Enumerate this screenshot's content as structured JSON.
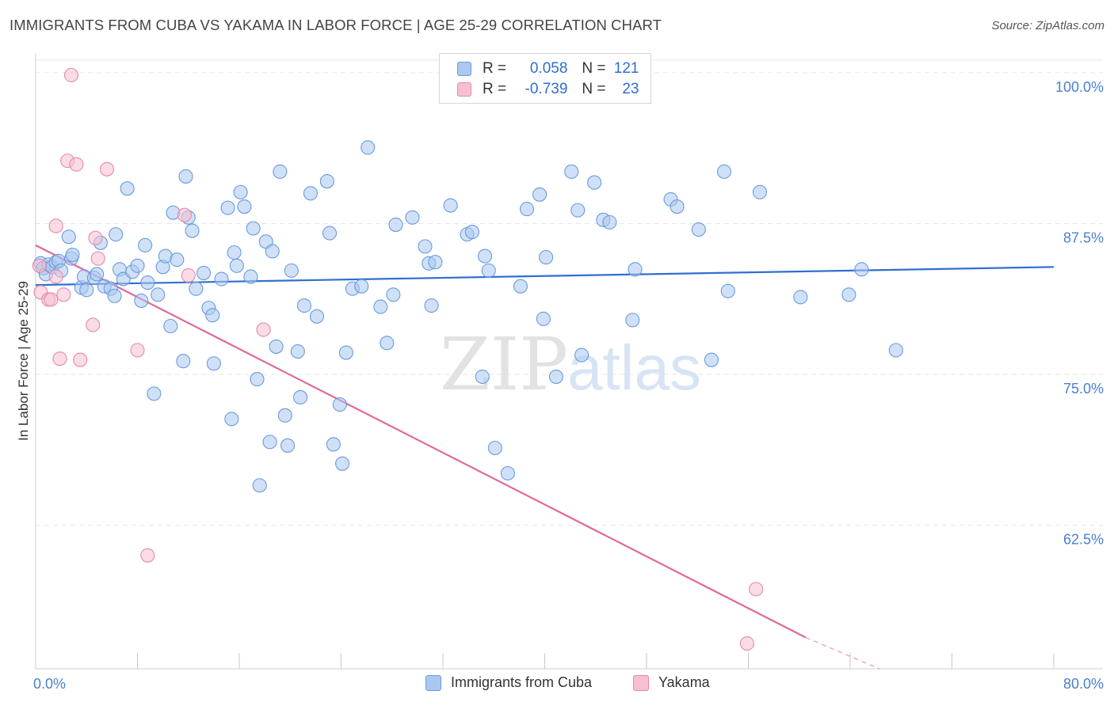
{
  "header": {
    "title": "IMMIGRANTS FROM CUBA VS YAKAMA IN LABOR FORCE | AGE 25-29 CORRELATION CHART",
    "source": "Source: ZipAtlas.com"
  },
  "watermark": {
    "text_zip": "ZIP",
    "text_atlas": "atlas"
  },
  "legend": {
    "r_label": "R =",
    "n_label": "N =",
    "rows": [
      {
        "r": "0.058",
        "n": "121",
        "color": "#aac8f0",
        "border": "#6b9be0"
      },
      {
        "r": "-0.739",
        "n": "23",
        "color": "#f7bfd0",
        "border": "#e88aa6"
      }
    ]
  },
  "colors": {
    "blue_fill": "#aac8f0",
    "blue_stroke": "#6a9adf",
    "blue_line": "#2f6fd0",
    "pink_fill": "#f7c0d1",
    "pink_stroke": "#e58aa8",
    "pink_line": "#e0679a",
    "grid": "#e6e6e6",
    "axis_text": "#4a7fd0"
  },
  "chart_data": {
    "type": "scatter",
    "title": "IMMIGRANTS FROM CUBA VS YAKAMA IN LABOR FORCE | AGE 25-29 CORRELATION CHART",
    "xlabel": "",
    "ylabel": "In Labor Force | Age 25-29",
    "xlim": [
      0,
      80
    ],
    "ylim": [
      50.6,
      101.3
    ],
    "x_tick_labels": [
      "0.0%",
      "80.0%"
    ],
    "y_ticks": [
      62.5,
      75.0,
      87.5,
      100.0
    ],
    "y_tick_labels": [
      "62.5%",
      "75.0%",
      "87.5%",
      "100.0%"
    ],
    "grid": true,
    "legend_position": "top-center",
    "series": [
      {
        "name": "Immigrants from Cuba",
        "r": 0.058,
        "n": 121,
        "trend": {
          "x": [
            0,
            80
          ],
          "y": [
            82.4,
            83.9
          ]
        },
        "points": [
          [
            0.4,
            84.2
          ],
          [
            0.6,
            83.8
          ],
          [
            0.8,
            83.3
          ],
          [
            1.0,
            84.1
          ],
          [
            1.3,
            83.9
          ],
          [
            1.6,
            84.3
          ],
          [
            1.8,
            84.4
          ],
          [
            2.0,
            83.6
          ],
          [
            2.6,
            86.4
          ],
          [
            2.8,
            84.6
          ],
          [
            2.9,
            84.9
          ],
          [
            3.6,
            82.2
          ],
          [
            3.8,
            83.1
          ],
          [
            4.0,
            82.0
          ],
          [
            4.6,
            83.0
          ],
          [
            4.8,
            83.3
          ],
          [
            5.1,
            85.9
          ],
          [
            5.4,
            82.3
          ],
          [
            5.9,
            82.1
          ],
          [
            6.2,
            81.5
          ],
          [
            6.3,
            86.6
          ],
          [
            6.6,
            83.7
          ],
          [
            6.9,
            82.9
          ],
          [
            7.2,
            90.4
          ],
          [
            7.6,
            83.5
          ],
          [
            8.0,
            84.0
          ],
          [
            8.3,
            81.1
          ],
          [
            8.6,
            85.7
          ],
          [
            8.8,
            82.6
          ],
          [
            9.3,
            73.4
          ],
          [
            9.6,
            81.6
          ],
          [
            10.0,
            83.9
          ],
          [
            10.2,
            84.8
          ],
          [
            10.6,
            79.0
          ],
          [
            10.8,
            88.4
          ],
          [
            11.1,
            84.5
          ],
          [
            11.6,
            76.1
          ],
          [
            11.8,
            91.4
          ],
          [
            12.0,
            88.0
          ],
          [
            12.3,
            86.9
          ],
          [
            12.6,
            82.1
          ],
          [
            13.2,
            83.4
          ],
          [
            13.6,
            80.5
          ],
          [
            13.9,
            79.9
          ],
          [
            14.0,
            75.9
          ],
          [
            14.6,
            82.9
          ],
          [
            15.1,
            88.8
          ],
          [
            15.4,
            71.3
          ],
          [
            15.6,
            85.1
          ],
          [
            15.8,
            84.0
          ],
          [
            16.1,
            90.1
          ],
          [
            16.4,
            88.9
          ],
          [
            16.9,
            83.1
          ],
          [
            17.1,
            87.1
          ],
          [
            17.4,
            74.6
          ],
          [
            17.6,
            65.8
          ],
          [
            18.1,
            86.0
          ],
          [
            18.4,
            69.4
          ],
          [
            18.6,
            85.2
          ],
          [
            18.9,
            77.3
          ],
          [
            19.2,
            91.8
          ],
          [
            19.6,
            71.6
          ],
          [
            19.8,
            69.1
          ],
          [
            20.1,
            83.6
          ],
          [
            20.6,
            76.9
          ],
          [
            20.8,
            73.1
          ],
          [
            21.1,
            80.7
          ],
          [
            21.6,
            90.0
          ],
          [
            22.1,
            79.8
          ],
          [
            22.9,
            91.0
          ],
          [
            23.1,
            86.7
          ],
          [
            23.4,
            69.2
          ],
          [
            23.9,
            72.5
          ],
          [
            24.1,
            67.6
          ],
          [
            24.4,
            76.8
          ],
          [
            24.9,
            82.1
          ],
          [
            25.6,
            82.3
          ],
          [
            26.1,
            93.8
          ],
          [
            27.1,
            80.6
          ],
          [
            27.6,
            77.6
          ],
          [
            28.1,
            81.6
          ],
          [
            28.3,
            87.4
          ],
          [
            29.6,
            88.0
          ],
          [
            30.6,
            85.6
          ],
          [
            30.9,
            84.2
          ],
          [
            31.1,
            80.7
          ],
          [
            31.4,
            84.3
          ],
          [
            32.6,
            89.0
          ],
          [
            33.9,
            86.6
          ],
          [
            34.3,
            86.8
          ],
          [
            35.1,
            74.8
          ],
          [
            35.3,
            84.8
          ],
          [
            35.6,
            83.6
          ],
          [
            36.1,
            68.9
          ],
          [
            37.1,
            66.8
          ],
          [
            38.1,
            82.3
          ],
          [
            38.6,
            88.7
          ],
          [
            39.6,
            89.9
          ],
          [
            39.9,
            79.6
          ],
          [
            40.1,
            84.7
          ],
          [
            40.9,
            74.8
          ],
          [
            42.1,
            91.8
          ],
          [
            42.6,
            88.6
          ],
          [
            42.9,
            76.6
          ],
          [
            43.9,
            90.9
          ],
          [
            44.9,
            98.5
          ],
          [
            44.6,
            87.8
          ],
          [
            45.1,
            87.6
          ],
          [
            46.9,
            79.5
          ],
          [
            47.1,
            83.7
          ],
          [
            49.9,
            89.5
          ],
          [
            50.4,
            88.9
          ],
          [
            52.1,
            87.0
          ],
          [
            53.1,
            76.2
          ],
          [
            54.1,
            91.8
          ],
          [
            54.4,
            81.9
          ],
          [
            56.9,
            90.1
          ],
          [
            60.1,
            81.4
          ],
          [
            63.9,
            81.6
          ],
          [
            64.9,
            83.7
          ],
          [
            67.6,
            77.0
          ]
        ]
      },
      {
        "name": "Yakama",
        "r": -0.739,
        "n": 23,
        "trend": {
          "x": [
            0,
            60.5
          ],
          "y": [
            85.7,
            53.2
          ]
        },
        "trend_dashed": {
          "x": [
            60.5,
            66.3
          ],
          "y": [
            53.2,
            50.6
          ]
        },
        "points": [
          [
            0.4,
            81.8
          ],
          [
            1.0,
            81.2
          ],
          [
            1.2,
            81.2
          ],
          [
            1.6,
            87.3
          ],
          [
            1.6,
            83.1
          ],
          [
            1.9,
            76.3
          ],
          [
            2.2,
            81.6
          ],
          [
            2.5,
            92.7
          ],
          [
            2.8,
            99.8
          ],
          [
            3.2,
            92.4
          ],
          [
            3.5,
            76.2
          ],
          [
            4.5,
            79.1
          ],
          [
            4.7,
            86.3
          ],
          [
            5.6,
            92.0
          ],
          [
            8.0,
            77.0
          ],
          [
            8.8,
            60.0
          ],
          [
            11.7,
            88.2
          ],
          [
            12.0,
            83.2
          ],
          [
            17.9,
            78.7
          ],
          [
            56.6,
            57.2
          ],
          [
            55.9,
            52.7
          ],
          [
            4.9,
            84.6
          ],
          [
            0.3,
            84.0
          ]
        ]
      }
    ]
  }
}
